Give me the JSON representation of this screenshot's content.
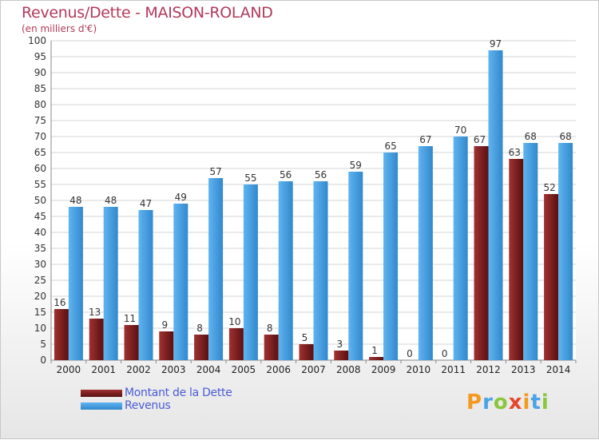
{
  "chart_data": {
    "type": "bar",
    "title": "Revenus/Dette - MAISON-ROLAND",
    "subtitle": "(en milliers d'€)",
    "categories": [
      "2000",
      "2001",
      "2002",
      "2003",
      "2004",
      "2005",
      "2006",
      "2007",
      "2008",
      "2009",
      "2010",
      "2011",
      "2012",
      "2013",
      "2014"
    ],
    "series": [
      {
        "name": "Montant de la Dette",
        "color": "#7a1c1c",
        "values": [
          16,
          13,
          11,
          9,
          8,
          10,
          8,
          5,
          3,
          1,
          0,
          0,
          67,
          63,
          52
        ]
      },
      {
        "name": "Revenus",
        "color": "#4aa3e6",
        "values": [
          48,
          48,
          47,
          49,
          57,
          55,
          56,
          56,
          59,
          65,
          67,
          70,
          97,
          68,
          68
        ]
      }
    ],
    "ylim": [
      0,
      100
    ],
    "ytick_step": 5,
    "grid": true,
    "legend_position": "bottom-left"
  },
  "logo": {
    "text": "Proxiti",
    "letters": [
      {
        "ch": "P",
        "color": "#f39a1e"
      },
      {
        "ch": "r",
        "color": "#4aa3e6"
      },
      {
        "ch": "o",
        "color": "#8cc63f"
      },
      {
        "ch": "x",
        "color": "#e8452c"
      },
      {
        "ch": "i",
        "color": "#f39a1e"
      },
      {
        "ch": "t",
        "color": "#4aa3e6"
      },
      {
        "ch": "i",
        "color": "#8cc63f"
      }
    ]
  }
}
